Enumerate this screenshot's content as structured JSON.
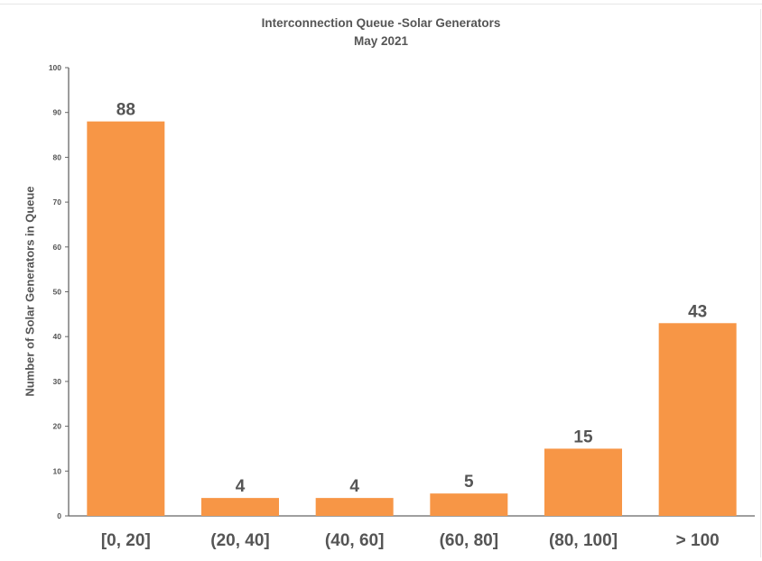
{
  "chart_data": {
    "type": "bar",
    "title": "Interconnection Queue -Solar Generators",
    "subtitle": "May 2021",
    "xlabel": "",
    "ylabel": "Number of Solar Generators in Queue",
    "categories": [
      "[0, 20]",
      "(20, 40]",
      "(40, 60]",
      "(60, 80]",
      "(80, 100]",
      "> 100"
    ],
    "values": [
      88,
      4,
      4,
      5,
      15,
      43
    ],
    "data_labels": [
      "88",
      "4",
      "4",
      "5",
      "15",
      "43"
    ],
    "ylim": [
      0,
      100
    ],
    "yticks": [
      0,
      10,
      20,
      30,
      40,
      50,
      60,
      70,
      80,
      90,
      100
    ],
    "grid": false,
    "legend": "none",
    "bar_color": "#F79646",
    "text_color": "#555555"
  }
}
